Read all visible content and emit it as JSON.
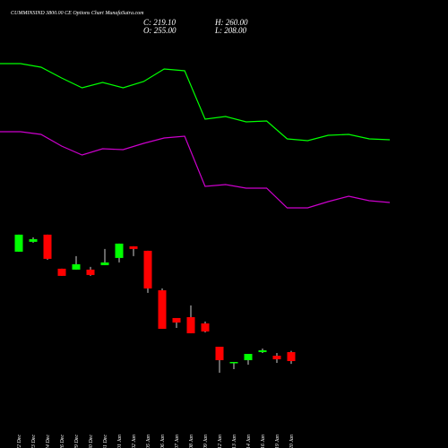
{
  "header": {
    "title": "CUMMINSIND 3800.00 CE Options Chart MunafaSutra.com",
    "close": "C: 219.10",
    "open": "O: 255.00",
    "high": "H: 260.00",
    "low": "L: 208.00"
  },
  "chart_data": {
    "type": "candlestick",
    "categories": [
      "22 Dec",
      "23 Dec",
      "24 Dec",
      "26 Dec",
      "29 Dec",
      "30 Dec",
      "31 Dec",
      "01 Jan",
      "02 Jan",
      "05 Jan",
      "06 Jan",
      "07 Jan",
      "08 Jan",
      "09 Jan",
      "12 Jan",
      "13 Jan",
      "14 Jan",
      "16 Jan",
      "19 Jan",
      "20 Jan"
    ],
    "open": [
      657.1,
      696.6,
      725.3,
      588.9,
      585.3,
      585.3,
      603.2,
      632.0,
      678.6,
      660.7,
      502.7,
      391.4,
      395.0,
      369.9,
      276.5,
      211.9,
      222.7,
      255.0,
      240.6,
      255.0
    ],
    "close": [
      725.3,
      707.3,
      628.4,
      560.2,
      606.8,
      563.7,
      614.0,
      689.4,
      667.9,
      509.9,
      348.3,
      373.5,
      330.4,
      337.6,
      222.7,
      215.5,
      247.8,
      262.2,
      226.3,
      219.1
    ],
    "high": [
      725.3,
      714.5,
      725.3,
      588.9,
      639.1,
      596.1,
      667.9,
      689.4,
      678.6,
      660.7,
      509.9,
      391.4,
      441.7,
      377.1,
      276.5,
      215.5,
      247.8,
      269.4,
      251.4,
      260.0
    ],
    "low": [
      657.1,
      693.0,
      624.8,
      560.2,
      585.3,
      560.2,
      603.2,
      614.0,
      639.1,
      491.9,
      348.3,
      351.9,
      330.4,
      334.0,
      172.4,
      186.8,
      204.7,
      251.4,
      211.9,
      208.0
    ],
    "up_color": "#00ff00",
    "down_color": "#ff0000",
    "ylim": [
      158,
      750
    ],
    "series": [
      {
        "color": "#00ff00",
        "axis": "y2",
        "values": [
          169,
          169,
          165,
          153,
          142,
          148,
          142,
          149,
          163,
          161,
          107,
          110,
          104,
          105,
          85,
          83,
          89,
          90,
          85,
          84
        ]
      },
      {
        "color": "#cc00cc",
        "axis": "y2",
        "values": [
          93,
          93,
          90,
          77,
          67,
          74,
          73,
          80,
          86,
          88,
          32,
          34,
          30,
          30,
          8,
          8,
          15,
          21,
          16,
          14
        ]
      }
    ],
    "y2lim": [
      0,
      180
    ]
  }
}
